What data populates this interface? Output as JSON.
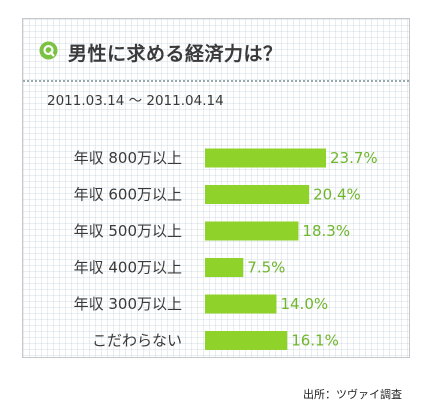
{
  "header": {
    "title": "男性に求める経済力は？",
    "period": "2011.03.14 ～ 2011.04.14",
    "icon": "q-badge-icon"
  },
  "footer": {
    "source": "出所：ツヴァイ調査"
  },
  "colors": {
    "bar": "#8fd22a",
    "value_text": "#6fb62c",
    "icon": "#7cc242"
  },
  "chart_data": {
    "type": "bar",
    "orientation": "horizontal",
    "categories": [
      "年収 800万以上",
      "年収 600万以上",
      "年収 500万以上",
      "年収 400万以上",
      "年収 300万以上",
      "こだわらない"
    ],
    "values": [
      23.7,
      20.4,
      18.3,
      7.5,
      14.0,
      16.1
    ],
    "value_labels": [
      "23.7%",
      "20.4%",
      "18.3%",
      "7.5%",
      "14.0%",
      "16.1%"
    ],
    "xlim": [
      0,
      23.7
    ],
    "grid": false,
    "legend": "none"
  }
}
